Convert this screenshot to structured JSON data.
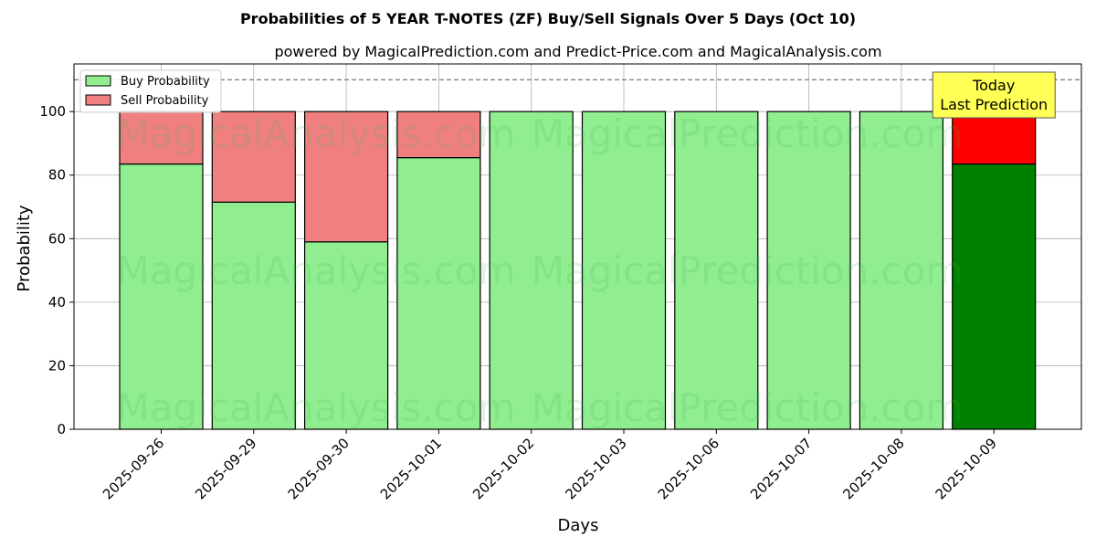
{
  "chart_data": {
    "type": "bar",
    "stacked": true,
    "title": "Probabilities of 5 YEAR T-NOTES (ZF) Buy/Sell Signals Over 5 Days (Oct 10)",
    "subtitle": "powered by MagicalPrediction.com and Predict-Price.com and MagicalAnalysis.com",
    "xlabel": "Days",
    "ylabel": "Probability",
    "ylim": [
      0,
      115
    ],
    "yticks": [
      0,
      20,
      40,
      60,
      80,
      100
    ],
    "grid": true,
    "legend_position": "top-left",
    "reference_line": 110,
    "categories": [
      "2025-09-26",
      "2025-09-29",
      "2025-09-30",
      "2025-10-01",
      "2025-10-02",
      "2025-10-03",
      "2025-10-06",
      "2025-10-07",
      "2025-10-08",
      "2025-10-09"
    ],
    "series": [
      {
        "name": "Buy Probability",
        "values": [
          83.5,
          71.5,
          59,
          85.5,
          100,
          100,
          100,
          100,
          100,
          83.5
        ],
        "color": "#90ee90",
        "highlight_color": "#008000"
      },
      {
        "name": "Sell Probability",
        "values": [
          16.5,
          28.5,
          41,
          14.5,
          0,
          0,
          0,
          0,
          0,
          16.5
        ],
        "color": "#f08080",
        "highlight_color": "#ff0000"
      }
    ],
    "highlight_index": 9,
    "annotation": {
      "lines": [
        "Today",
        "Last Prediction"
      ],
      "background": "#ffff55"
    },
    "watermarks": [
      "MagicalAnalysis.com",
      "MagicalPrediction.com"
    ]
  }
}
